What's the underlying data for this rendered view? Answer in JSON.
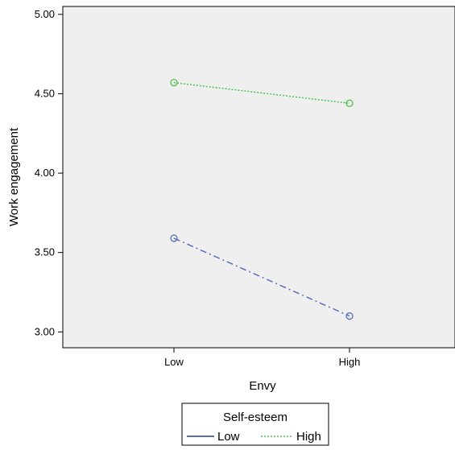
{
  "chart_data": {
    "type": "line",
    "title": "",
    "xlabel": "Envy",
    "ylabel": "Work engagement",
    "categories": [
      "Low",
      "High"
    ],
    "ylim": [
      2.9,
      5.05
    ],
    "yticks": [
      3.0,
      3.5,
      4.0,
      4.5,
      5.0
    ],
    "ytick_labels": [
      "3.00",
      "3.50",
      "4.00",
      "4.50",
      "5.00"
    ],
    "grid": false,
    "background": "#efefef",
    "legend": {
      "title": "Self-esteem",
      "placement": "bottom-center"
    },
    "series": [
      {
        "name": "Low",
        "values": [
          3.59,
          3.1
        ],
        "color": "#5b6fb8",
        "dash": "dash-dot"
      },
      {
        "name": "High",
        "values": [
          4.57,
          4.44
        ],
        "color": "#4fc24f",
        "dash": "dotted"
      }
    ]
  }
}
